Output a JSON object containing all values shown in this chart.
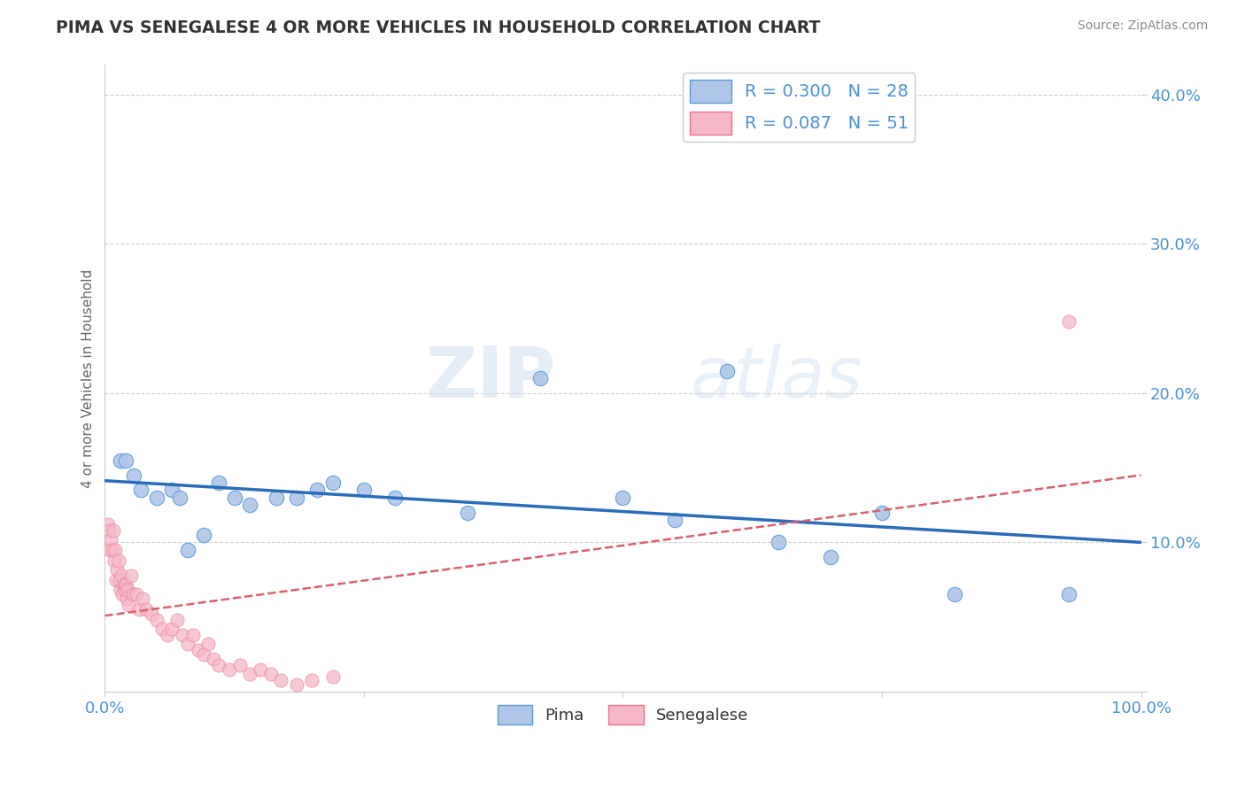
{
  "title": "PIMA VS SENEGALESE 4 OR MORE VEHICLES IN HOUSEHOLD CORRELATION CHART",
  "source": "Source: ZipAtlas.com",
  "ylabel": "4 or more Vehicles in Household",
  "xlim": [
    0.0,
    100.0
  ],
  "ylim": [
    0.0,
    0.42
  ],
  "yticks": [
    0.0,
    0.1,
    0.2,
    0.3,
    0.4
  ],
  "ytick_labels": [
    "",
    "10.0%",
    "20.0%",
    "30.0%",
    "40.0%"
  ],
  "xticks": [
    0.0,
    25.0,
    50.0,
    75.0,
    100.0
  ],
  "xtick_labels": [
    "0.0%",
    "",
    "",
    "",
    "100.0%"
  ],
  "pima_color": "#aec6e8",
  "senegalese_color": "#f5b8c8",
  "pima_edge_color": "#5b9bd5",
  "senegalese_edge_color": "#e8738a",
  "pima_line_color": "#2b6cb8",
  "senegalese_line_color": "#d96070",
  "R_pima": 0.3,
  "N_pima": 28,
  "R_senegalese": 0.087,
  "N_senegalese": 51,
  "pima_x": [
    1.5,
    2.0,
    2.8,
    3.5,
    5.0,
    6.5,
    7.2,
    8.0,
    9.5,
    11.0,
    12.5,
    14.0,
    16.5,
    18.5,
    20.5,
    22.0,
    25.0,
    28.0,
    35.0,
    42.0,
    50.0,
    55.0,
    60.0,
    65.0,
    70.0,
    75.0,
    82.0,
    93.0
  ],
  "pima_y": [
    0.155,
    0.155,
    0.145,
    0.135,
    0.13,
    0.135,
    0.13,
    0.095,
    0.105,
    0.14,
    0.13,
    0.125,
    0.13,
    0.13,
    0.135,
    0.14,
    0.135,
    0.13,
    0.12,
    0.21,
    0.13,
    0.115,
    0.215,
    0.1,
    0.09,
    0.12,
    0.065,
    0.065
  ],
  "senegalese_x": [
    0.3,
    0.4,
    0.5,
    0.6,
    0.7,
    0.8,
    0.9,
    1.0,
    1.1,
    1.2,
    1.3,
    1.4,
    1.5,
    1.6,
    1.7,
    1.8,
    1.9,
    2.0,
    2.1,
    2.2,
    2.3,
    2.5,
    2.7,
    3.0,
    3.3,
    3.6,
    4.0,
    4.5,
    5.0,
    5.5,
    6.0,
    6.5,
    7.0,
    7.5,
    8.0,
    8.5,
    9.0,
    9.5,
    10.0,
    10.5,
    11.0,
    12.0,
    13.0,
    14.0,
    15.0,
    16.0,
    17.0,
    18.5,
    20.0,
    22.0,
    93.0
  ],
  "senegalese_y": [
    0.112,
    0.108,
    0.095,
    0.102,
    0.095,
    0.108,
    0.088,
    0.095,
    0.075,
    0.082,
    0.088,
    0.075,
    0.068,
    0.078,
    0.065,
    0.072,
    0.068,
    0.072,
    0.062,
    0.068,
    0.058,
    0.078,
    0.065,
    0.065,
    0.055,
    0.062,
    0.055,
    0.052,
    0.048,
    0.042,
    0.038,
    0.042,
    0.048,
    0.038,
    0.032,
    0.038,
    0.028,
    0.025,
    0.032,
    0.022,
    0.018,
    0.015,
    0.018,
    0.012,
    0.015,
    0.012,
    0.008,
    0.005,
    0.008,
    0.01,
    0.248
  ],
  "watermark_zip": "ZIP",
  "watermark_atlas": "atlas",
  "background_color": "#ffffff",
  "grid_color": "#cccccc",
  "text_color": "#4a90d9",
  "title_color": "#333333",
  "source_color": "#888888"
}
